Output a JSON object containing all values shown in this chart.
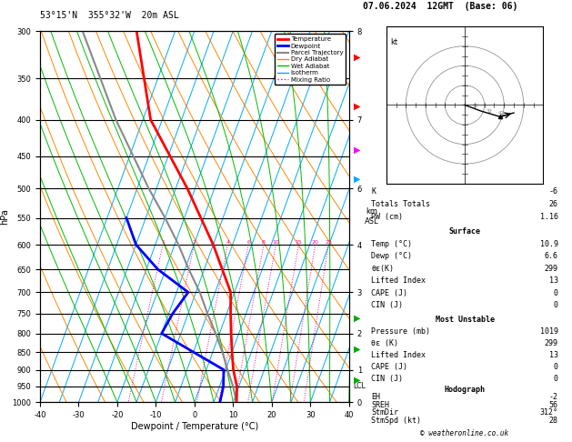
{
  "title_left": "53°15'N  355°32'W  20m ASL",
  "title_right": "07.06.2024  12GMT  (Base: 06)",
  "xlabel": "Dewpoint / Temperature (°C)",
  "ylabel_left": "hPa",
  "pressure_levels": [
    300,
    350,
    400,
    450,
    500,
    550,
    600,
    650,
    700,
    750,
    800,
    850,
    900,
    950,
    1000
  ],
  "temp_color": "#ff0000",
  "dewp_color": "#0000ff",
  "parcel_color": "#888888",
  "dry_adiabat_color": "#ff8800",
  "wet_adiabat_color": "#00bb00",
  "isotherm_color": "#00aaff",
  "mixing_ratio_color": "#ff00aa",
  "legend_items": [
    {
      "label": "Temperature",
      "color": "#ff0000",
      "lw": 2,
      "ls": "-"
    },
    {
      "label": "Dewpoint",
      "color": "#0000ff",
      "lw": 2,
      "ls": "-"
    },
    {
      "label": "Parcel Trajectory",
      "color": "#888888",
      "lw": 1.5,
      "ls": "-"
    },
    {
      "label": "Dry Adiabat",
      "color": "#ff8800",
      "lw": 1,
      "ls": "-"
    },
    {
      "label": "Wet Adiabat",
      "color": "#00bb00",
      "lw": 1,
      "ls": "-"
    },
    {
      "label": "Isotherm",
      "color": "#00aaff",
      "lw": 1,
      "ls": "-"
    },
    {
      "label": "Mixing Ratio",
      "color": "#ff00aa",
      "lw": 1,
      "ls": ":"
    }
  ],
  "temp_profile": {
    "pressure": [
      1000,
      950,
      900,
      850,
      800,
      750,
      700,
      600,
      500,
      400,
      300
    ],
    "temp": [
      10.9,
      9.5,
      7.0,
      5.0,
      3.0,
      1.0,
      -1.0,
      -10.0,
      -22.0,
      -38.0,
      -50.0
    ]
  },
  "dewp_profile": {
    "pressure": [
      1000,
      950,
      900,
      850,
      800,
      750,
      700,
      650,
      600,
      550
    ],
    "dewp": [
      6.6,
      6.0,
      4.5,
      -5.0,
      -15.0,
      -14.0,
      -12.0,
      -22.0,
      -30.0,
      -35.0
    ]
  },
  "parcel_profile": {
    "pressure": [
      1000,
      950,
      900,
      850,
      800,
      750,
      700,
      650,
      600,
      550,
      500,
      400,
      300
    ],
    "temp": [
      10.9,
      8.5,
      5.5,
      2.5,
      -1.0,
      -5.0,
      -9.0,
      -14.0,
      -19.0,
      -25.0,
      -32.0,
      -47.0,
      -64.0
    ]
  },
  "mixing_ratio_lines": [
    1,
    2,
    4,
    6,
    8,
    10,
    15,
    20,
    25
  ],
  "km_pressures": [
    1000,
    900,
    800,
    700,
    600,
    500,
    400,
    300
  ],
  "km_values": [
    0,
    1,
    2,
    3,
    4,
    6,
    7,
    8
  ],
  "info_panel": {
    "K": -6,
    "Totals_Totals": 26,
    "PW_cm": 1.16,
    "Surface_Temp": 10.9,
    "Surface_Dewp": 6.6,
    "Surface_theta_e": 299,
    "Lifted_Index": 13,
    "CAPE_J": 0,
    "CIN_J": 0,
    "MU_Pressure_mb": 1019,
    "MU_theta_e": 299,
    "MU_Lifted_Index": 13,
    "MU_CAPE_J": 0,
    "MU_CIN_J": 0,
    "EH": -2,
    "SREH": 56,
    "StmDir": 312,
    "StmSpd_kt": 28
  },
  "lcl_label": "LCL",
  "lcl_pressure": 950,
  "copyright": "© weatheronline.co.uk"
}
